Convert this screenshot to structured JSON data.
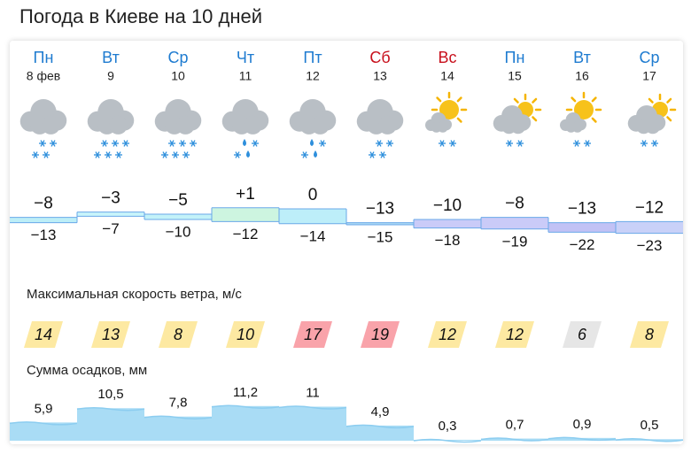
{
  "title": "Погода в Киеве на 10 дней",
  "wind_title": "Максимальная скорость ветра, м/с",
  "precip_title": "Сумма осадков, мм",
  "days": [
    {
      "weekday": "Пн",
      "date": "8 фев",
      "weekend": false,
      "sky": "cloudy",
      "fall": "snow",
      "flakes": 4,
      "t_max": {
        "value": -8,
        "label": "−8"
      },
      "t_min": {
        "value": -13,
        "label": "−13"
      },
      "band_color": "#bdeef7",
      "wind": 14,
      "wind_color": "#fde9a2",
      "precip": {
        "value": 5.9,
        "label": "5,9"
      }
    },
    {
      "weekday": "Вт",
      "date": "9",
      "weekend": false,
      "sky": "cloudy",
      "fall": "snow",
      "flakes": 6,
      "t_max": {
        "value": -3,
        "label": "−3"
      },
      "t_min": {
        "value": -7,
        "label": "−7"
      },
      "band_color": "#c9f5fb",
      "wind": 13,
      "wind_color": "#fde9a2",
      "precip": {
        "value": 10.5,
        "label": "10,5"
      }
    },
    {
      "weekday": "Ср",
      "date": "10",
      "weekend": false,
      "sky": "cloudy",
      "fall": "snow",
      "flakes": 6,
      "t_max": {
        "value": -5,
        "label": "−5"
      },
      "t_min": {
        "value": -10,
        "label": "−10"
      },
      "band_color": "#c3f2f9",
      "wind": 8,
      "wind_color": "#fde9a2",
      "precip": {
        "value": 7.8,
        "label": "7,8"
      }
    },
    {
      "weekday": "Чт",
      "date": "11",
      "weekend": false,
      "sky": "cloudy",
      "fall": "sleet",
      "flakes": 4,
      "t_max": {
        "value": 1,
        "label": "+1"
      },
      "t_min": {
        "value": -12,
        "label": "−12"
      },
      "band_color": "#cdf5e0",
      "wind": 10,
      "wind_color": "#fde9a2",
      "precip": {
        "value": 11.2,
        "label": "11,2"
      }
    },
    {
      "weekday": "Пт",
      "date": "12",
      "weekend": false,
      "sky": "cloudy",
      "fall": "sleet",
      "flakes": 4,
      "t_max": {
        "value": 0,
        "label": "0"
      },
      "t_min": {
        "value": -14,
        "label": "−14"
      },
      "band_color": "#bdeef9",
      "wind": 17,
      "wind_color": "#f9a3aa",
      "precip": 11
    },
    {
      "weekday": "Сб",
      "date": "13",
      "weekend": true,
      "sky": "cloudy",
      "fall": "snow",
      "flakes": 4,
      "t_max": {
        "value": -13,
        "label": "−13"
      },
      "t_min": {
        "value": -15,
        "label": "−15"
      },
      "band_color": "#addaf5",
      "wind": 19,
      "wind_color": "#f9a3aa",
      "precip": {
        "value": 4.9,
        "label": "4,9"
      }
    },
    {
      "weekday": "Вс",
      "date": "14",
      "weekend": true,
      "sky": "sun-cloud",
      "fall": "snow",
      "flakes": 2,
      "t_max": {
        "value": -10,
        "label": "−10"
      },
      "t_min": {
        "value": -18,
        "label": "−18"
      },
      "band_color": "#cacbf8",
      "wind": 12,
      "wind_color": "#fde9a2",
      "precip": {
        "value": 0.3,
        "label": "0,3"
      }
    },
    {
      "weekday": "Пн",
      "date": "15",
      "weekend": false,
      "sky": "cloud-sun",
      "fall": "snow",
      "flakes": 2,
      "t_max": {
        "value": -8,
        "label": "−8"
      },
      "t_min": {
        "value": -19,
        "label": "−19"
      },
      "band_color": "#cacbf8",
      "wind": 12,
      "wind_color": "#fde9a2",
      "precip": {
        "value": 0.7,
        "label": "0,7"
      }
    },
    {
      "weekday": "Вт",
      "date": "16",
      "weekend": false,
      "sky": "sun-cloud",
      "fall": "snow",
      "flakes": 2,
      "t_max": {
        "value": -13,
        "label": "−13"
      },
      "t_min": {
        "value": -22,
        "label": "−22"
      },
      "band_color": "#c2c2f5",
      "wind": 6,
      "wind_color": "#e6e6e6",
      "precip": {
        "value": 0.9,
        "label": "0,9"
      }
    },
    {
      "weekday": "Ср",
      "date": "17",
      "weekend": false,
      "sky": "cloud-sun",
      "fall": "snow",
      "flakes": 2,
      "t_max": {
        "value": -12,
        "label": "−12"
      },
      "t_min": {
        "value": -23,
        "label": "−23"
      },
      "band_color": "#c9d1f8",
      "wind": 8,
      "wind_color": "#fde9a2",
      "precip": {
        "value": 0.5,
        "label": "0,5"
      }
    }
  ]
}
